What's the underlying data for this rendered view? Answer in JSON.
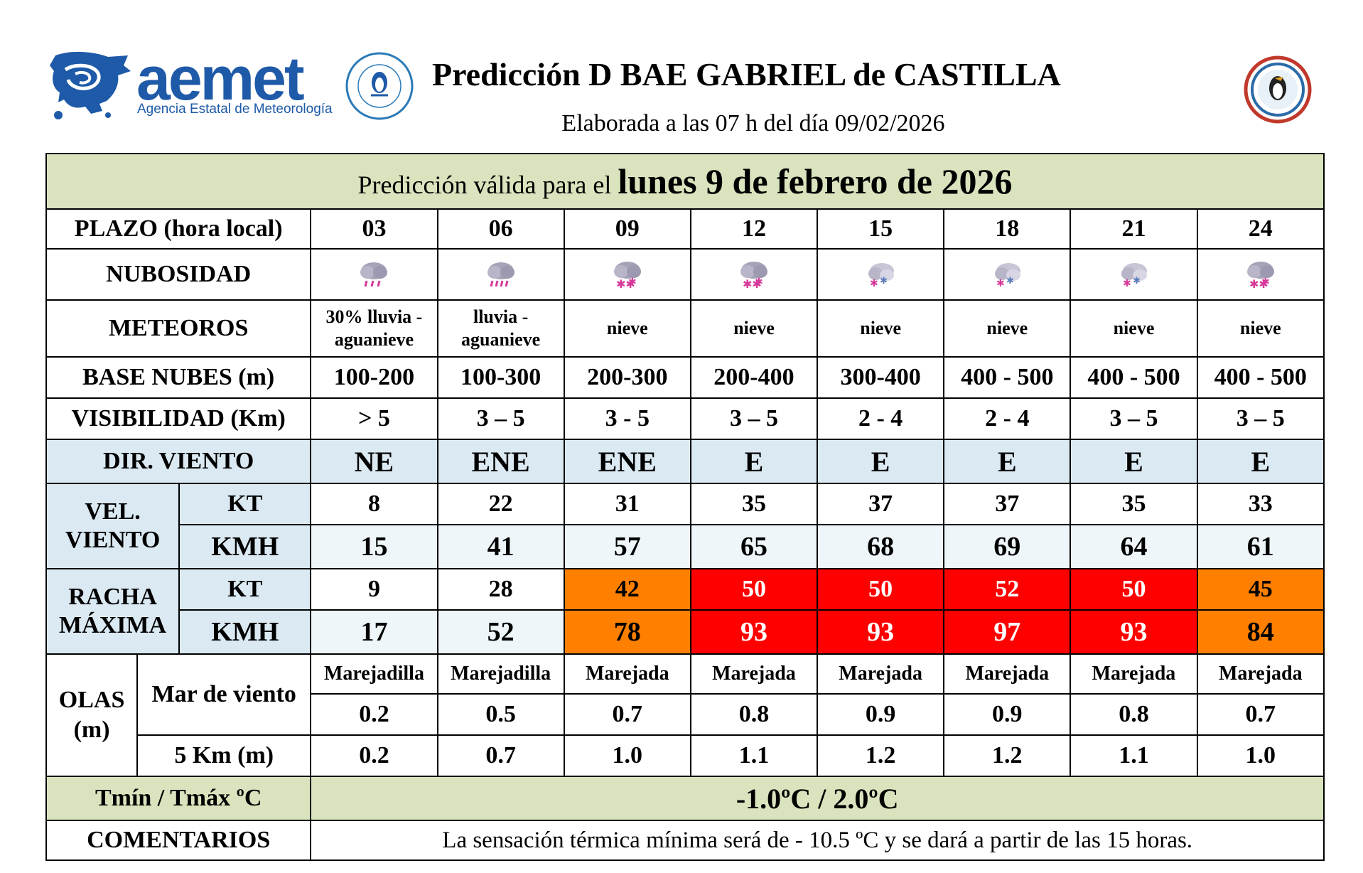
{
  "header": {
    "brand": "aemet",
    "brand_subtitle": "Agencia Estatal de Meteorología",
    "title": "Predicción D BAE GABRIEL de CASTILLA",
    "subtitle": "Elaborada a las 07 h del día 09/02/2026"
  },
  "validity": {
    "prefix": "Predicción válida para el",
    "date": "lunes 9 de febrero de 2026"
  },
  "labels": {
    "plazo": "PLAZO (hora local)",
    "nubosidad": "NUBOSIDAD",
    "meteoros": "METEOROS",
    "base_nubes": "BASE NUBES (m)",
    "visibilidad": "VISIBILIDAD (Km)",
    "dir_viento": "DIR. VIENTO",
    "vel_viento": "VEL. VIENTO",
    "racha": "RACHA MÁXIMA",
    "kt": "KT",
    "kmh": "KMH",
    "olas": "OLAS (m)",
    "mar_viento": "Mar de viento",
    "km5": "5 Km (m)",
    "temp": "Tmín / Tmáx ºC",
    "comentarios": "COMENTARIOS"
  },
  "hours": [
    "03",
    "06",
    "09",
    "12",
    "15",
    "18",
    "21",
    "24"
  ],
  "clouds": [
    "rain-cloud-icon",
    "rain-cloud-icon",
    "snow-cloud-icon",
    "snow-cloud-icon",
    "snow-cloud-icon",
    "snow-cloud-icon",
    "snow-cloud-icon",
    "snow-cloud-icon"
  ],
  "meteoros": [
    "30% lluvia - aguanieve",
    "lluvia - aguanieve",
    "nieve",
    "nieve",
    "nieve",
    "nieve",
    "nieve",
    "nieve"
  ],
  "base_nubes": [
    "100-200",
    "100-300",
    "200-300",
    "200-400",
    "300-400",
    "400 - 500",
    "400 - 500",
    "400 - 500"
  ],
  "visibilidad": [
    "> 5",
    "3 – 5",
    "3 - 5",
    "3 – 5",
    "2 - 4",
    "2 - 4",
    "3 – 5",
    "3 – 5"
  ],
  "dir_viento": [
    "NE",
    "ENE",
    "ENE",
    "E",
    "E",
    "E",
    "E",
    "E"
  ],
  "vel_kt": [
    "8",
    "22",
    "31",
    "35",
    "37",
    "37",
    "35",
    "33"
  ],
  "vel_kmh": [
    "15",
    "41",
    "57",
    "65",
    "68",
    "69",
    "64",
    "61"
  ],
  "racha_kt": [
    "9",
    "28",
    "42",
    "50",
    "50",
    "52",
    "50",
    "45"
  ],
  "racha_kmh": [
    "17",
    "52",
    "78",
    "93",
    "93",
    "97",
    "93",
    "84"
  ],
  "racha_levels": [
    "none",
    "none",
    "orange",
    "red",
    "red",
    "red",
    "red",
    "orange"
  ],
  "mar_estado": [
    "Marejadilla",
    "Marejadilla",
    "Marejada",
    "Marejada",
    "Marejada",
    "Marejada",
    "Marejada",
    "Marejada"
  ],
  "mar_altura": [
    "0.2",
    "0.5",
    "0.7",
    "0.8",
    "0.9",
    "0.9",
    "0.8",
    "0.7"
  ],
  "olas_5km": [
    "0.2",
    "0.7",
    "1.0",
    "1.1",
    "1.2",
    "1.2",
    "1.1",
    "1.0"
  ],
  "temperatura": "-1.0ºC / 2.0ºC",
  "comentarios": "La sensación térmica mínima será de - 10.5 ºC y se dará a partir de las 15 horas.",
  "colors": {
    "green_band": "#d9e3bd",
    "blue_band": "#dbe9f2",
    "orange_alert": "#ff7f00",
    "red_alert": "#ff0000",
    "brand_blue": "#1e5aa8"
  }
}
